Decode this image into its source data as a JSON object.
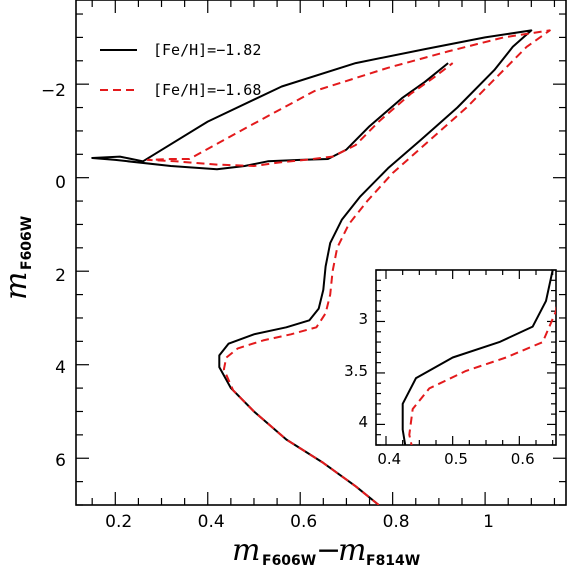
{
  "chart_data": [
    {
      "type": "line",
      "xlabel": {
        "m": "m",
        "sub1": "F606W",
        "dash": "−",
        "sub2": "F814W"
      },
      "ylabel": {
        "m": "m",
        "sub": "F606W"
      },
      "xlim": [
        0.115,
        1.175
      ],
      "ylim": [
        7.0,
        -3.8
      ],
      "y_inverted": true,
      "x_ticks": [
        0.2,
        0.4,
        0.6,
        0.8,
        1.0
      ],
      "x_tick_labels": [
        "0.2",
        "0.4",
        "0.6",
        "0.8",
        "1"
      ],
      "y_ticks": [
        -2,
        0,
        2,
        4,
        6
      ],
      "y_tick_labels": [
        "−2",
        "0",
        "2",
        "4",
        "6"
      ],
      "legend_position": "top-left",
      "series": [
        {
          "name": "[Fe/H]=−1.82",
          "color": "#000000",
          "style": "solid",
          "points": [
            [
              0.77,
              7.0
            ],
            [
              0.72,
              6.6
            ],
            [
              0.65,
              6.1
            ],
            [
              0.57,
              5.6
            ],
            [
              0.5,
              5.0
            ],
            [
              0.45,
              4.5
            ],
            [
              0.425,
              4.05
            ],
            [
              0.425,
              3.8
            ],
            [
              0.445,
              3.55
            ],
            [
              0.5,
              3.35
            ],
            [
              0.57,
              3.2
            ],
            [
              0.62,
              3.05
            ],
            [
              0.64,
              2.8
            ],
            [
              0.65,
              2.4
            ],
            [
              0.655,
              1.9
            ],
            [
              0.665,
              1.4
            ],
            [
              0.69,
              0.9
            ],
            [
              0.73,
              0.4
            ],
            [
              0.79,
              -0.2
            ],
            [
              0.86,
              -0.8
            ],
            [
              0.94,
              -1.5
            ],
            [
              1.02,
              -2.3
            ],
            [
              1.06,
              -2.8
            ],
            [
              1.1,
              -3.15
            ],
            [
              1.0,
              -3.0
            ],
            [
              0.87,
              -2.75
            ],
            [
              0.72,
              -2.45
            ],
            [
              0.56,
              -1.95
            ],
            [
              0.4,
              -1.2
            ],
            [
              0.26,
              -0.35
            ],
            [
              0.21,
              -0.45
            ],
            [
              0.15,
              -0.42
            ],
            [
              0.2,
              -0.38
            ],
            [
              0.32,
              -0.25
            ],
            [
              0.42,
              -0.18
            ],
            [
              0.48,
              -0.25
            ],
            [
              0.53,
              -0.35
            ],
            [
              0.6,
              -0.38
            ],
            [
              0.66,
              -0.4
            ],
            [
              0.7,
              -0.6
            ],
            [
              0.75,
              -1.1
            ],
            [
              0.82,
              -1.7
            ],
            [
              0.87,
              -2.05
            ],
            [
              0.92,
              -2.45
            ]
          ]
        },
        {
          "name": "[Fe/H]=−1.68",
          "color": "#e31a1c",
          "style": "dashed",
          "points": [
            [
              0.77,
              7.0
            ],
            [
              0.72,
              6.6
            ],
            [
              0.65,
              6.1
            ],
            [
              0.57,
              5.6
            ],
            [
              0.5,
              5.0
            ],
            [
              0.455,
              4.55
            ],
            [
              0.435,
              4.1
            ],
            [
              0.44,
              3.85
            ],
            [
              0.465,
              3.65
            ],
            [
              0.52,
              3.48
            ],
            [
              0.58,
              3.35
            ],
            [
              0.635,
              3.2
            ],
            [
              0.655,
              2.9
            ],
            [
              0.665,
              2.5
            ],
            [
              0.67,
              2.0
            ],
            [
              0.68,
              1.5
            ],
            [
              0.705,
              1.0
            ],
            [
              0.745,
              0.5
            ],
            [
              0.8,
              -0.1
            ],
            [
              0.88,
              -0.8
            ],
            [
              0.96,
              -1.5
            ],
            [
              1.04,
              -2.3
            ],
            [
              1.09,
              -2.8
            ],
            [
              1.14,
              -3.15
            ],
            [
              1.04,
              -3.0
            ],
            [
              0.92,
              -2.7
            ],
            [
              0.79,
              -2.35
            ],
            [
              0.63,
              -1.85
            ],
            [
              0.48,
              -1.05
            ],
            [
              0.36,
              -0.4
            ],
            [
              0.32,
              -0.4
            ],
            [
              0.27,
              -0.38
            ],
            [
              0.33,
              -0.35
            ],
            [
              0.42,
              -0.28
            ],
            [
              0.5,
              -0.25
            ],
            [
              0.55,
              -0.32
            ],
            [
              0.61,
              -0.38
            ],
            [
              0.67,
              -0.45
            ],
            [
              0.72,
              -0.7
            ],
            [
              0.77,
              -1.2
            ],
            [
              0.84,
              -1.8
            ],
            [
              0.89,
              -2.15
            ],
            [
              0.93,
              -2.45
            ]
          ]
        }
      ]
    },
    {
      "type": "line",
      "xlim": [
        0.385,
        0.655
      ],
      "ylim": [
        4.2,
        2.5
      ],
      "y_inverted": true,
      "x_ticks": [
        0.4,
        0.5,
        0.6
      ],
      "x_tick_labels": [
        "0.4",
        "0.5",
        "0.6"
      ],
      "y_ticks": [
        3,
        3.5,
        4
      ],
      "y_tick_labels": [
        "3",
        "3.5",
        "4"
      ],
      "series": [
        {
          "color": "#000000",
          "style": "solid",
          "points": [
            [
              0.43,
              4.25
            ],
            [
              0.425,
              4.05
            ],
            [
              0.425,
              3.8
            ],
            [
              0.445,
              3.55
            ],
            [
              0.5,
              3.35
            ],
            [
              0.57,
              3.2
            ],
            [
              0.62,
              3.05
            ],
            [
              0.64,
              2.8
            ],
            [
              0.65,
              2.5
            ]
          ]
        },
        {
          "color": "#e31a1c",
          "style": "dashed",
          "points": [
            [
              0.44,
              4.25
            ],
            [
              0.435,
              4.1
            ],
            [
              0.44,
              3.85
            ],
            [
              0.465,
              3.65
            ],
            [
              0.52,
              3.48
            ],
            [
              0.58,
              3.35
            ],
            [
              0.635,
              3.2
            ],
            [
              0.655,
              2.9
            ],
            [
              0.66,
              2.7
            ]
          ]
        }
      ]
    }
  ]
}
